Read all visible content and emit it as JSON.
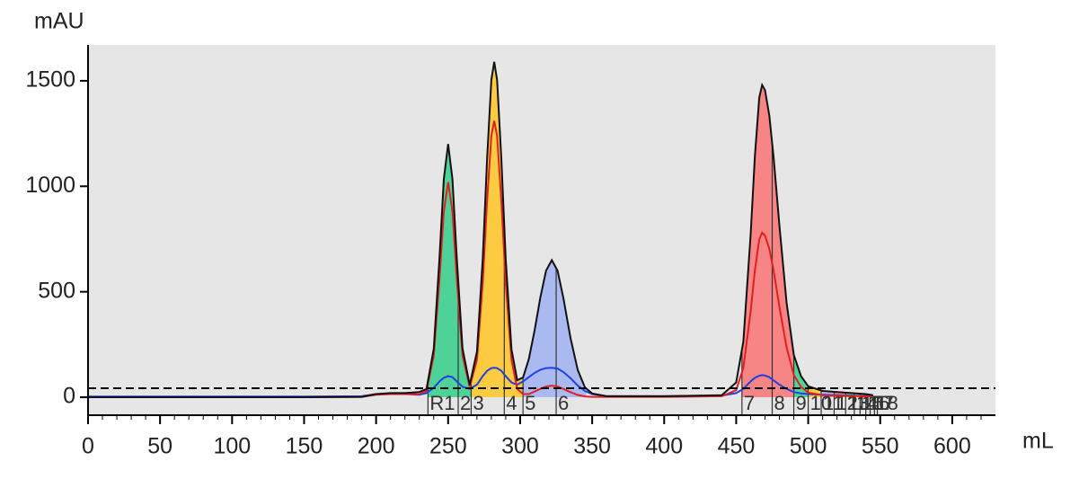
{
  "chart_data": {
    "type": "line",
    "y_label": "mAU",
    "x_label": "mL",
    "xlim": [
      0,
      630
    ],
    "ylim": [
      -85,
      1670
    ],
    "xticks": [
      0,
      50,
      100,
      150,
      200,
      250,
      300,
      350,
      400,
      450,
      500,
      550,
      600
    ],
    "yticks": [
      0,
      500,
      1000,
      1500
    ],
    "background": "#e6e6e6",
    "threshold": 43,
    "x": [
      0,
      50,
      100,
      150,
      190,
      200,
      210,
      220,
      230,
      235,
      240,
      244,
      247,
      250,
      253,
      256,
      260,
      265,
      270,
      274,
      277,
      280,
      282,
      284,
      287,
      290,
      294,
      298,
      302,
      306,
      310,
      314,
      318,
      322,
      326,
      330,
      335,
      340,
      345,
      350,
      360,
      400,
      440,
      450,
      455,
      460,
      463,
      466,
      468,
      470,
      473,
      476,
      480,
      485,
      490,
      495,
      500,
      510,
      520,
      530,
      540,
      545
    ],
    "series": [
      {
        "color": "#111111",
        "values": [
          0,
          0,
          0,
          0,
          2,
          15,
          20,
          20,
          25,
          39,
          230,
          662,
          1034,
          1200,
          1034,
          662,
          232,
          58,
          217,
          654,
          1124,
          1504,
          1590,
          1504,
          1124,
          654,
          228,
          81,
          94,
          181,
          316,
          472,
          600,
          650,
          600,
          472,
          279,
          129,
          46,
          18,
          5,
          5,
          10,
          70,
          264,
          770,
          1147,
          1420,
          1480,
          1456,
          1335,
          1136,
          816,
          449,
          200,
          100,
          52,
          30,
          25,
          20,
          15,
          10
        ]
      },
      {
        "color": "#e02020",
        "values": [
          0,
          0,
          0,
          0,
          2,
          12,
          15,
          15,
          15,
          30,
          196,
          563,
          879,
          1020,
          879,
          563,
          197,
          49,
          178,
          539,
          926,
          1239,
          1310,
          1239,
          926,
          539,
          178,
          40,
          15,
          15,
          27,
          40,
          51,
          55,
          51,
          40,
          24,
          11,
          4,
          2,
          2,
          2,
          5,
          34,
          139,
          406,
          604,
          748,
          780,
          767,
          704,
          599,
          430,
          237,
          105,
          49,
          22,
          10,
          8,
          6,
          5,
          5
        ]
      },
      {
        "color": "#2040e0",
        "values": [
          3,
          3,
          3,
          3,
          5,
          15,
          18,
          15,
          12,
          20,
          45,
          75,
          92,
          100,
          95,
          75,
          50,
          40,
          60,
          100,
          125,
          138,
          140,
          138,
          125,
          100,
          70,
          60,
          75,
          95,
          115,
          130,
          138,
          140,
          136,
          120,
          90,
          55,
          30,
          15,
          5,
          5,
          8,
          20,
          40,
          75,
          92,
          102,
          105,
          103,
          95,
          80,
          60,
          40,
          25,
          18,
          15,
          12,
          10,
          8,
          6,
          5
        ]
      }
    ],
    "fractions": [
      {
        "label": "R1",
        "start": 236,
        "end": 257,
        "color": "#3ecf8e"
      },
      {
        "label": "2",
        "start": 257,
        "end": 266,
        "color": "#3ecf8e"
      },
      {
        "label": "3",
        "start": 266,
        "end": 289,
        "color": "#ffc830"
      },
      {
        "label": "4",
        "start": 289,
        "end": 302,
        "color": "#ffc830"
      },
      {
        "label": "5",
        "start": 302,
        "end": 325,
        "color": "#a3b5f2"
      },
      {
        "label": "6",
        "start": 325,
        "end": 346,
        "color": "#a3b5f2"
      },
      {
        "label": "7",
        "start": 454,
        "end": 475,
        "color": "#f87a7a"
      },
      {
        "label": "8",
        "start": 475,
        "end": 490,
        "color": "#f87a7a"
      },
      {
        "label": "9",
        "start": 490,
        "end": 500,
        "color": "#3ecf8e"
      },
      {
        "label": "10",
        "start": 500,
        "end": 509,
        "color": "#ffc830"
      },
      {
        "label": "11",
        "start": 509,
        "end": 518,
        "color": "#a3b5f2"
      },
      {
        "label": "12",
        "start": 518,
        "end": 526,
        "color": "#f87a7a"
      },
      {
        "label": "13",
        "start": 526,
        "end": 532,
        "color": "#3ecf8e"
      },
      {
        "label": "14",
        "start": 532,
        "end": 536,
        "color": "#ffc830"
      },
      {
        "label": "15",
        "start": 536,
        "end": 540,
        "color": "#a3b5f2"
      },
      {
        "label": "16",
        "start": 540,
        "end": 543,
        "color": "#f87a7a"
      },
      {
        "label": "17",
        "start": 543,
        "end": 546,
        "color": "#3ecf8e"
      },
      {
        "label": "18",
        "start": 546,
        "end": 548,
        "color": "#ffc830"
      }
    ]
  }
}
